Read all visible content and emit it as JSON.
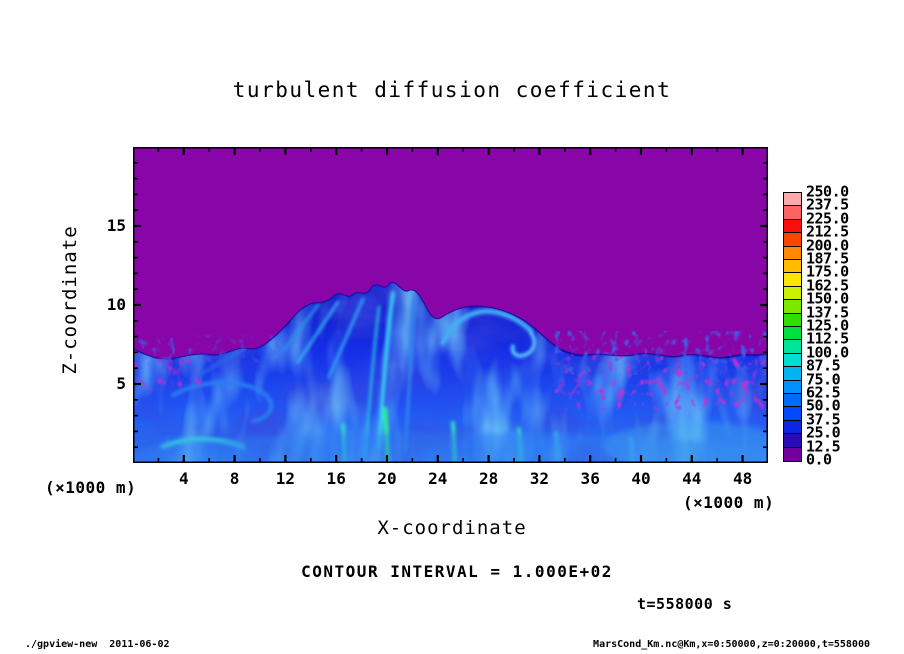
{
  "title": "turbulent diffusion coefficient",
  "plot": {
    "field_background_color": "#8806a8",
    "x_axis": {
      "label": "X-coordinate",
      "unit": "(×1000 m)",
      "ticks": [
        4,
        8,
        12,
        16,
        20,
        24,
        28,
        32,
        36,
        40,
        44,
        48
      ],
      "min": 0,
      "max": 50,
      "minor_step": 2
    },
    "z_axis": {
      "label": "Z-coordinate",
      "unit": "(×1000 m)",
      "ticks": [
        5,
        10,
        15
      ],
      "min": 0,
      "max": 20,
      "minor_step": 1
    }
  },
  "colorbar": {
    "labels_top_to_bottom": [
      "250.0",
      "237.5",
      "225.0",
      "212.5",
      "200.0",
      "187.5",
      "175.0",
      "162.5",
      "150.0",
      "137.5",
      "125.0",
      "112.5",
      "100.0",
      "87.5",
      "75.0",
      "62.5",
      "50.0",
      "37.5",
      "25.0",
      "12.5",
      "0.0"
    ],
    "colors_top_to_bottom": [
      "#ffa8a8",
      "#ff6262",
      "#fa0e0e",
      "#ff4400",
      "#ff8800",
      "#ffbb00",
      "#fae600",
      "#c8f000",
      "#7ce800",
      "#2ee000",
      "#00e03c",
      "#00e49b",
      "#00dcdc",
      "#00b4f0",
      "#0091ff",
      "#006cff",
      "#0049ff",
      "#0d24e4",
      "#2a0ab9",
      "#70009d"
    ]
  },
  "annotations": {
    "contour_interval": "CONTOUR INTERVAL = 1.000E+02",
    "time": "t=558000 s"
  },
  "footer": {
    "left": "./gpview-new  2011-06-02",
    "right": "MarsCond_Km.nc@Km,x=0:50000,z=0:20000,t=558000"
  },
  "chart_data": {
    "type": "heatmap",
    "title": "turbulent diffusion coefficient",
    "xlabel": "X-coordinate (×1000 m)",
    "ylabel": "Z-coordinate (×1000 m)",
    "xlim": [
      0,
      50
    ],
    "ylim": [
      0,
      20
    ],
    "x_major_ticks": [
      4,
      8,
      12,
      16,
      20,
      24,
      28,
      32,
      36,
      40,
      44,
      48
    ],
    "z_major_ticks": [
      5,
      10,
      15
    ],
    "colorbar_levels": [
      0.0,
      12.5,
      25.0,
      37.5,
      50.0,
      62.5,
      75.0,
      87.5,
      100.0,
      112.5,
      125.0,
      137.5,
      150.0,
      162.5,
      175.0,
      187.5,
      200.0,
      212.5,
      225.0,
      237.5,
      250.0
    ],
    "colorbar_palette_low_to_high": [
      "#70009d",
      "#2a0ab9",
      "#0d24e4",
      "#0049ff",
      "#006cff",
      "#0091ff",
      "#00b4f0",
      "#00dcdc",
      "#00e49b",
      "#00e03c",
      "#2ee000",
      "#7ce800",
      "#c8f000",
      "#fae600",
      "#ffbb00",
      "#ff8800",
      "#ff4400",
      "#fa0e0e",
      "#ff6262",
      "#ffa8a8"
    ],
    "contour_interval": 100.0,
    "time_seconds": 558000,
    "field_summary": "Quiescent region with values near 0 (purple) fills the domain above z of roughly 7-10; below is a turbulent mixed layer with diffusion coefficient mostly 12.5-100 (dark to light blue) and bright cyan/green filaments near 100-150; convective plume domes around x=15-33 reach z of about 10, while for x>35 the purple/blue interface is a fine speckled band near z=7."
  }
}
